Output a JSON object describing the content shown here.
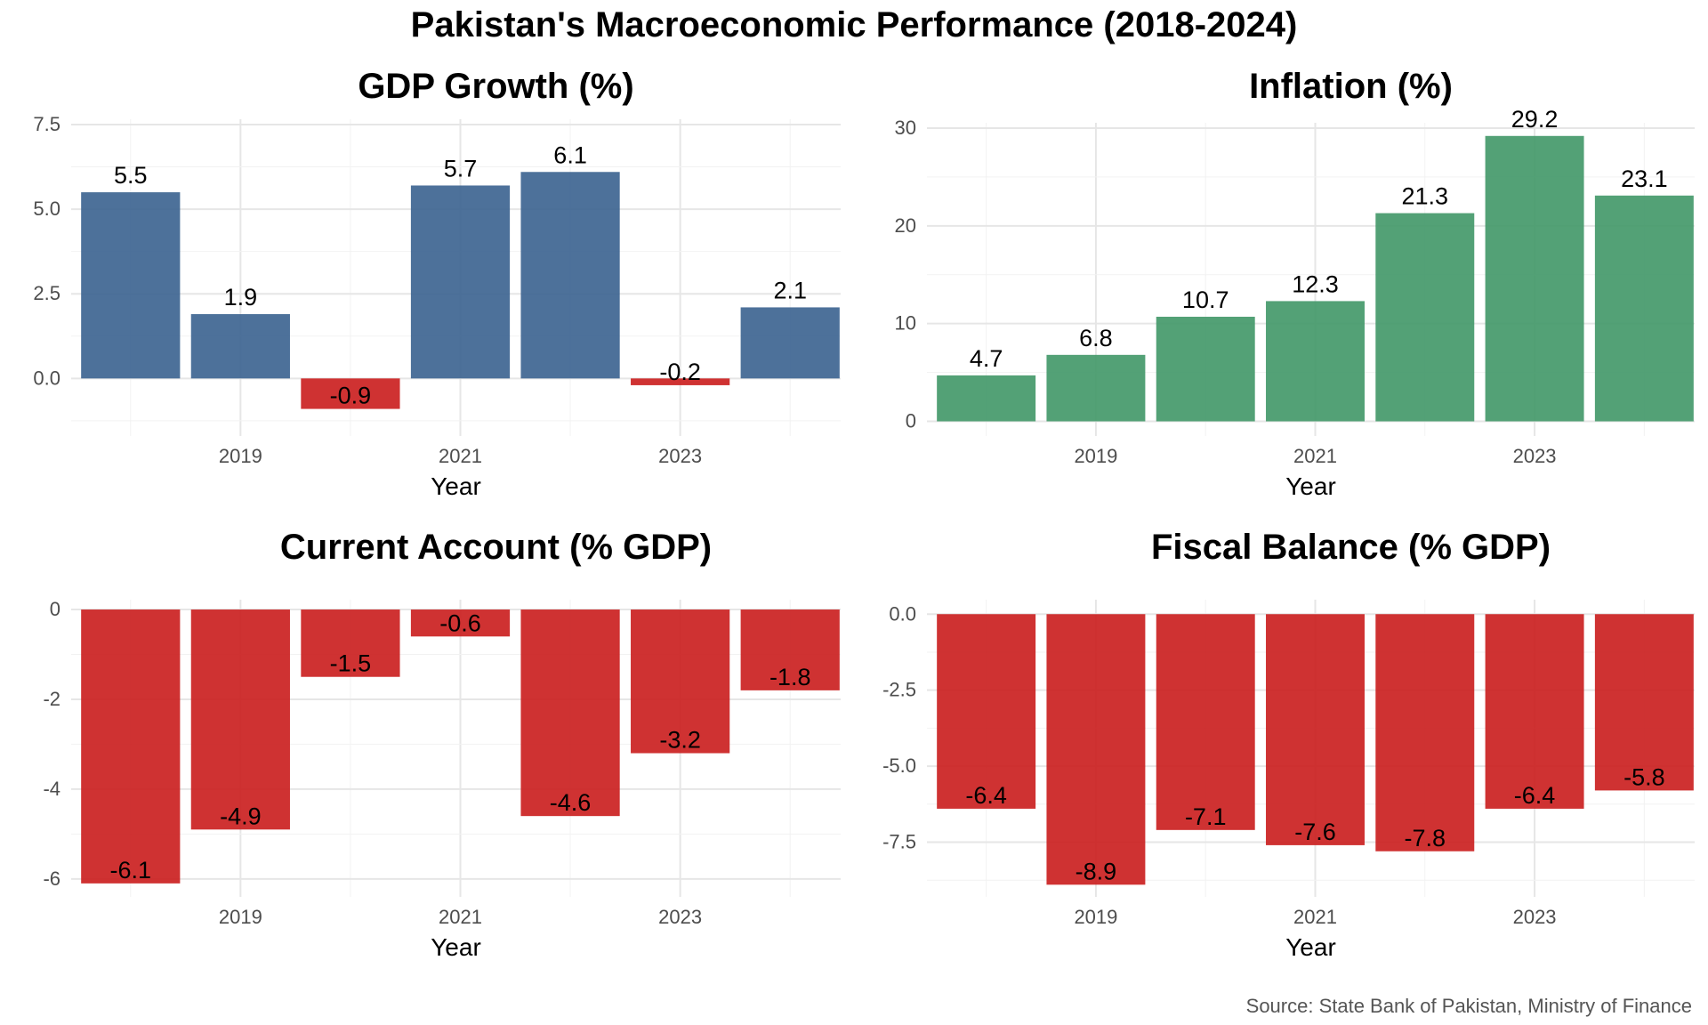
{
  "main_title": "Pakistan's Macroeconomic Performance (2018-2024)",
  "caption": "Source: State Bank of Pakistan, Ministry of Finance",
  "colors": {
    "positive_blue": "#3e6591",
    "positive_green": "#44996a",
    "negative": "#cb2121",
    "grid": "#ebebeb",
    "axis_text": "#4d4d4d"
  },
  "chart_data": [
    {
      "id": "gdp",
      "type": "bar",
      "title": "GDP Growth (%)",
      "xlabel": "Year",
      "ylabel": "",
      "x": [
        2018,
        2019,
        2020,
        2021,
        2022,
        2023,
        2024
      ],
      "values": [
        5.5,
        1.9,
        -0.9,
        5.7,
        6.1,
        -0.2,
        2.1
      ],
      "labels": [
        "5.5",
        "1.9",
        "-0.9",
        "5.7",
        "6.1",
        "-0.2",
        "2.1"
      ],
      "ylim": [
        -1.7,
        7.5
      ],
      "yticks": [
        0,
        2.5,
        5,
        7.5
      ],
      "ytick_labels": [
        "0.0",
        "2.5",
        "5.0",
        "7.5"
      ],
      "xticks": [
        2019,
        2021,
        2023
      ],
      "xtick_labels": [
        "2019",
        "2021",
        "2023"
      ],
      "positive_color": "#3e6591",
      "negative_color": "#cb2121",
      "grid": true
    },
    {
      "id": "inflation",
      "type": "bar",
      "title": "Inflation (%)",
      "xlabel": "Year",
      "ylabel": "",
      "x": [
        2018,
        2019,
        2020,
        2021,
        2022,
        2023,
        2024
      ],
      "values": [
        4.7,
        6.8,
        10.7,
        12.3,
        21.3,
        29.2,
        23.1
      ],
      "labels": [
        "4.7",
        "6.8",
        "10.7",
        "12.3",
        "21.3",
        "29.2",
        "23.1"
      ],
      "ylim": [
        0,
        30
      ],
      "yticks": [
        0,
        10,
        20,
        30
      ],
      "ytick_labels": [
        "0",
        "10",
        "20",
        "30"
      ],
      "xticks": [
        2019,
        2021,
        2023
      ],
      "xtick_labels": [
        "2019",
        "2021",
        "2023"
      ],
      "positive_color": "#44996a",
      "negative_color": "#cb2121",
      "grid": true
    },
    {
      "id": "current-account",
      "type": "bar",
      "title": "Current Account (% GDP)",
      "xlabel": "Year",
      "ylabel": "",
      "x": [
        2018,
        2019,
        2020,
        2021,
        2022,
        2023,
        2024
      ],
      "values": [
        -6.1,
        -4.9,
        -1.5,
        -0.6,
        -4.6,
        -3.2,
        -1.8
      ],
      "labels": [
        "-6.1",
        "-4.9",
        "-1.5",
        "-0.6",
        "-4.6",
        "-3.2",
        "-1.8"
      ],
      "ylim": [
        -6.1,
        0
      ],
      "yticks": [
        0,
        -2,
        -4,
        -6
      ],
      "ytick_labels": [
        "0",
        "-2",
        "-4",
        "-6"
      ],
      "xticks": [
        2019,
        2021,
        2023
      ],
      "xtick_labels": [
        "2019",
        "2021",
        "2023"
      ],
      "positive_color": "#cb2121",
      "negative_color": "#cb2121",
      "grid": true
    },
    {
      "id": "fiscal",
      "type": "bar",
      "title": "Fiscal Balance (% GDP)",
      "xlabel": "Year",
      "ylabel": "",
      "x": [
        2018,
        2019,
        2020,
        2021,
        2022,
        2023,
        2024
      ],
      "values": [
        -6.4,
        -8.9,
        -7.1,
        -7.6,
        -7.8,
        -6.4,
        -5.8
      ],
      "labels": [
        "-6.4",
        "-8.9",
        "-7.1",
        "-7.6",
        "-7.8",
        "-6.4",
        "-5.8"
      ],
      "ylim": [
        -8.9,
        0
      ],
      "yticks": [
        0,
        -2.5,
        -5,
        -7.5
      ],
      "ytick_labels": [
        "0.0",
        "-2.5",
        "-5.0",
        "-7.5"
      ],
      "xticks": [
        2019,
        2021,
        2023
      ],
      "xtick_labels": [
        "2019",
        "2021",
        "2023"
      ],
      "positive_color": "#cb2121",
      "negative_color": "#cb2121",
      "grid": true
    }
  ]
}
